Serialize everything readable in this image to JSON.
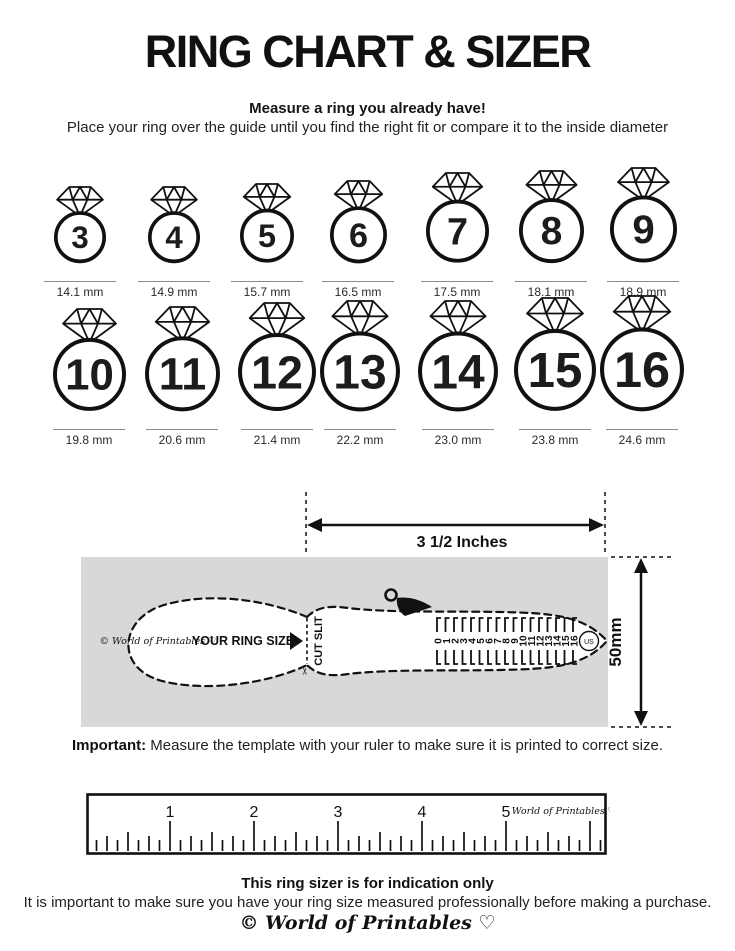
{
  "page": {
    "title": "RING CHART & SIZER"
  },
  "intro": {
    "heading": "Measure a ring you already have!",
    "body": "Place your ring over the guide until you find the right fit or compare it to the inside diameter"
  },
  "ring_chart": {
    "rows": [
      {
        "rings": [
          {
            "size": "3",
            "diameter_label": "14.1 mm"
          },
          {
            "size": "4",
            "diameter_label": "14.9 mm"
          },
          {
            "size": "5",
            "diameter_label": "15.7 mm"
          },
          {
            "size": "6",
            "diameter_label": "16.5 mm"
          },
          {
            "size": "7",
            "diameter_label": "17.5 mm"
          },
          {
            "size": "8",
            "diameter_label": "18.1 mm"
          },
          {
            "size": "9",
            "diameter_label": "18.9 mm"
          }
        ]
      },
      {
        "rings": [
          {
            "size": "10",
            "diameter_label": "19.8 mm"
          },
          {
            "size": "11",
            "diameter_label": "20.6 mm"
          },
          {
            "size": "12",
            "diameter_label": "21.4 mm"
          },
          {
            "size": "13",
            "diameter_label": "22.2 mm"
          },
          {
            "size": "14",
            "diameter_label": "23.0 mm"
          },
          {
            "size": "15",
            "diameter_label": "23.8 mm"
          },
          {
            "size": "16",
            "diameter_label": "24.6 mm"
          }
        ]
      }
    ]
  },
  "sizer": {
    "width_label": "3 1/2 Inches",
    "height_label": "50mm",
    "cut_slit_label": "CUT SLIT",
    "brand_label": "© World of Printables ♡",
    "ring_size_label": "YOUR RING SIZE",
    "scale_numbers": [
      "0",
      "1",
      "2",
      "3",
      "4",
      "5",
      "6",
      "7",
      "8",
      "9",
      "10",
      "11",
      "12",
      "13",
      "14",
      "15",
      "16"
    ],
    "scale_unit": "US",
    "scissors_glyph": "✂"
  },
  "important": {
    "label": "Important:",
    "text": " Measure the template with your ruler to make sure it is printed to correct size."
  },
  "ruler": {
    "numbers": [
      "1",
      "2",
      "3",
      "4",
      "5"
    ],
    "brand_label": "World of Printables ♡"
  },
  "footer": {
    "heading": "This ring sizer is for indication only",
    "body": "It is important to make sure you have your ring size measured professionally before making a purchase.",
    "logo": "© World of Printables ♡"
  },
  "colors": {
    "ink": "#111111",
    "panel_gray": "#d8d8d8",
    "rule_gray": "#8a8a8a"
  }
}
